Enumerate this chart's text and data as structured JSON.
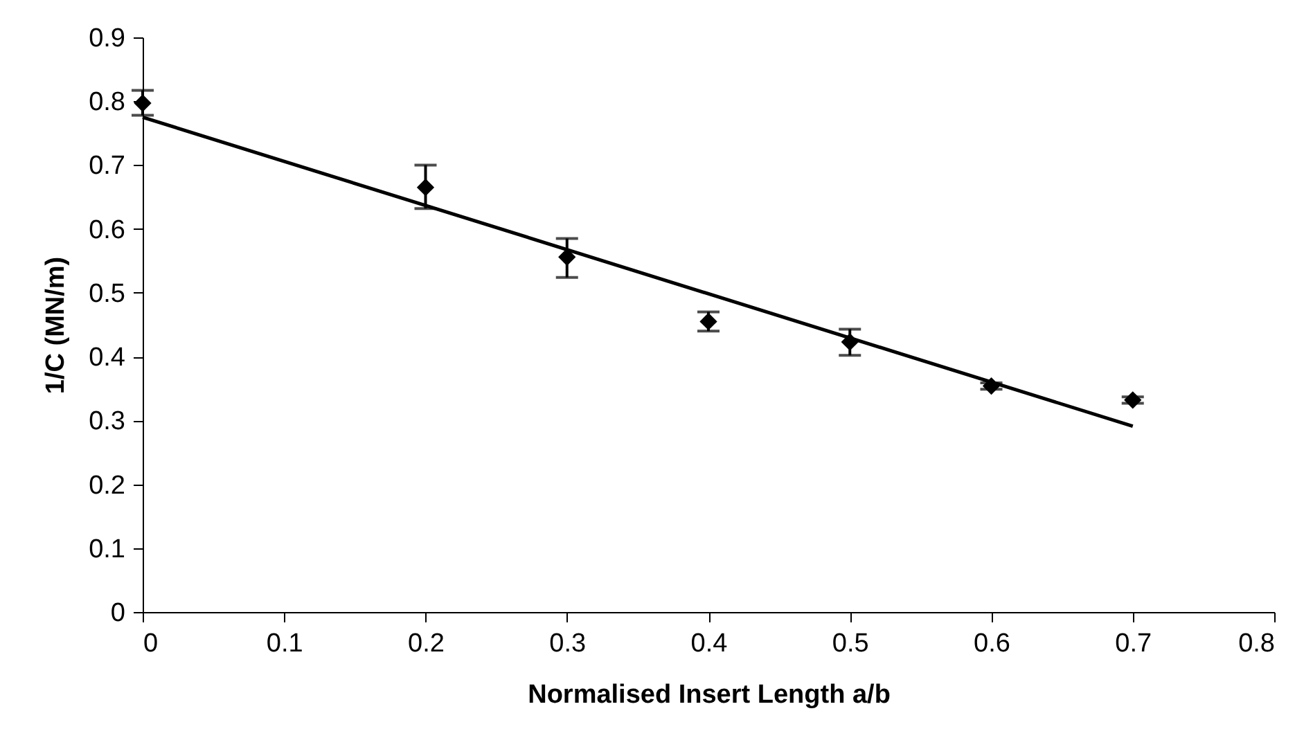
{
  "chart_data": {
    "type": "scatter",
    "xlabel": "Normalised Insert Length a/b",
    "ylabel": "1/C (MN/m)",
    "xlim": [
      0,
      0.8
    ],
    "xticks": [
      0,
      0.1,
      0.2,
      0.3,
      0.4,
      0.5,
      0.6,
      0.7,
      0.8
    ],
    "ylim": [
      0,
      0.9
    ],
    "yticks": [
      0,
      0.1,
      0.2,
      0.3,
      0.4,
      0.5,
      0.6,
      0.7,
      0.8,
      0.9
    ],
    "grid": false,
    "series": [
      {
        "color": "#000000",
        "marker": "diamond",
        "x": [
          0,
          0.2,
          0.3,
          0.4,
          0.5,
          0.6,
          0.7
        ],
        "values": [
          0.797,
          0.665,
          0.556,
          0.455,
          0.423,
          0.354,
          0.332
        ],
        "errors": [
          [
            0.778,
            0.817
          ],
          [
            0.632,
            0.7
          ],
          [
            0.524,
            0.585
          ],
          [
            0.44,
            0.47
          ],
          [
            0.402,
            0.443
          ],
          [
            0.349,
            0.359
          ],
          [
            0.327,
            0.337
          ]
        ]
      },
      {
        "type": "line",
        "color": "#000000",
        "marker": "none",
        "line_style": "solid",
        "x": [
          0,
          0.7
        ],
        "values": [
          0.775,
          0.291
        ]
      }
    ]
  }
}
